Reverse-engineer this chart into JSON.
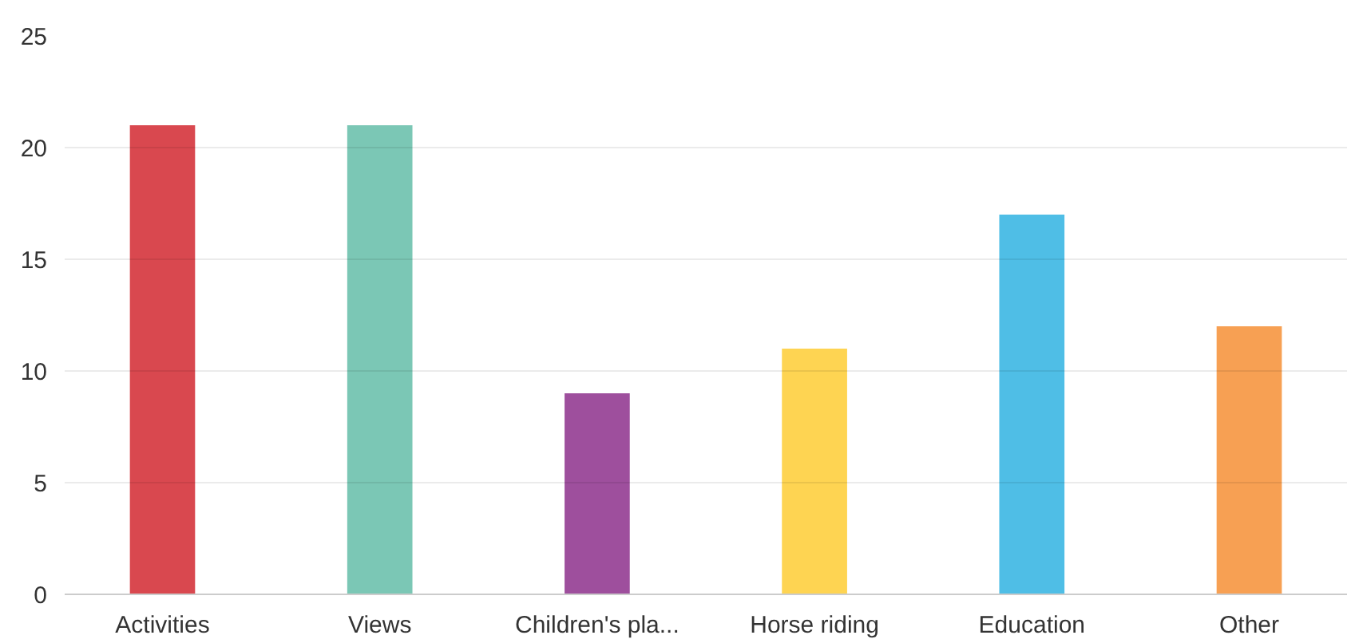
{
  "chart_data": {
    "type": "bar",
    "categories": [
      "Activities",
      "Views",
      "Children's pla...",
      "Horse riding",
      "Education",
      "Other"
    ],
    "values": [
      21,
      21,
      9,
      11,
      17,
      12
    ],
    "colors": [
      "#d9484f",
      "#7bc7b5",
      "#9e4f9d",
      "#fed452",
      "#4fbee6",
      "#f7a053"
    ],
    "ylim": [
      0,
      25
    ],
    "yticks": [
      0,
      5,
      10,
      15,
      20,
      25
    ],
    "grid": "y"
  }
}
